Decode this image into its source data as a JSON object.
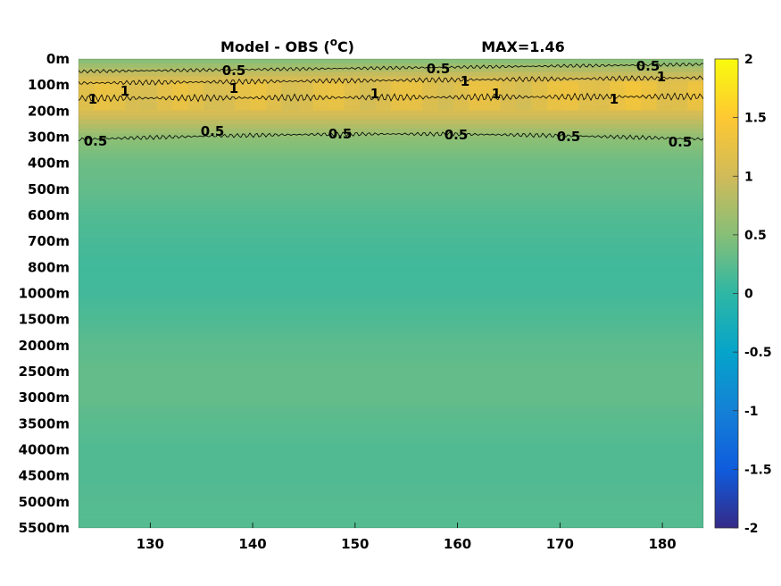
{
  "title": {
    "main": "Model - OBS (",
    "sup": "o",
    "unit": "C)",
    "max_label": "MAX=1.46"
  },
  "chart_data": {
    "type": "heatmap",
    "title": "Model - OBS (°C)",
    "max_value": 1.46,
    "x_ticks": [
      130,
      140,
      150,
      160,
      170,
      180
    ],
    "xlim": [
      123,
      184
    ],
    "depth_ticks": [
      "0m",
      "100m",
      "200m",
      "300m",
      "400m",
      "500m",
      "600m",
      "700m",
      "800m",
      "1000m",
      "1500m",
      "2000m",
      "2500m",
      "3000m",
      "3500m",
      "4000m",
      "4500m",
      "5000m",
      "5500m"
    ],
    "colorbar": {
      "range": [
        -2,
        2
      ],
      "ticks": [
        "2",
        "1.5",
        "1",
        "0.5",
        "0",
        "-0.5",
        "-1",
        "-1.5",
        "-2"
      ],
      "colormap": "parula"
    },
    "depth_profile": [
      0.45,
      1.25,
      1.1,
      0.55,
      0.35,
      0.3,
      0.2,
      0.15,
      0.1,
      0.12,
      0.18,
      0.26,
      0.3,
      0.3,
      0.24,
      0.2,
      0.2,
      0.22,
      0.22
    ],
    "contours": [
      {
        "level": 0.5,
        "label": "0.5"
      },
      {
        "level": 1,
        "label": "1"
      }
    ]
  }
}
